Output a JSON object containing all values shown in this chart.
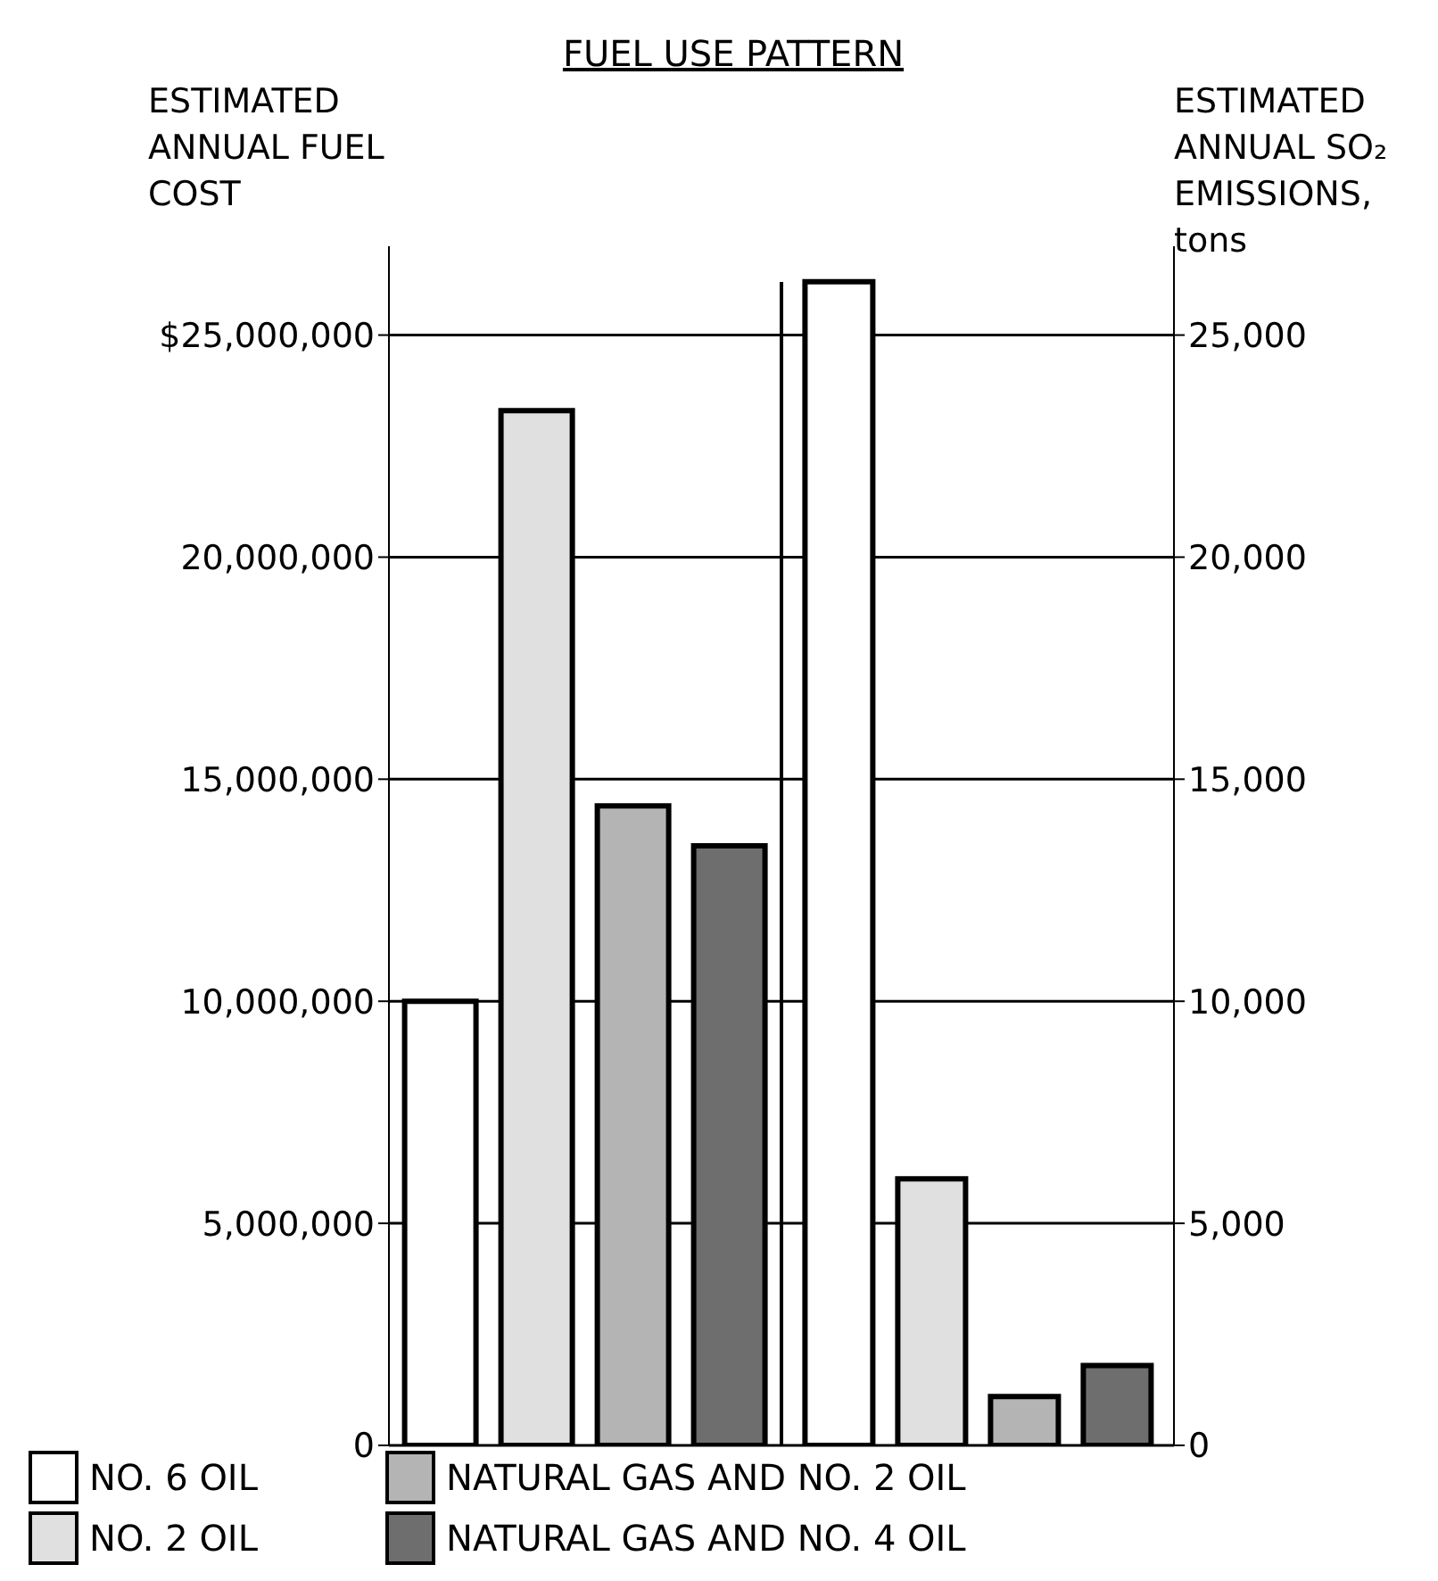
{
  "chart_data": [
    {
      "type": "bar",
      "title": "FUEL USE PATTERN",
      "ylabel": "ESTIMATED ANNUAL FUEL COST",
      "categories": [
        null
      ],
      "series": [
        {
          "name": "NO. 6 OIL",
          "color": "#ffffff",
          "values": [
            10000000
          ]
        },
        {
          "name": "NO. 2 OIL",
          "color": "#e0e0e0",
          "values": [
            23300000
          ]
        },
        {
          "name": "NATURAL GAS AND NO. 2 OIL",
          "color": "#b4b4b4",
          "values": [
            14400000
          ]
        },
        {
          "name": "NATURAL GAS AND NO. 4 OIL",
          "color": "#6e6e6e",
          "values": [
            13500000
          ]
        }
      ],
      "ylim": [
        0,
        27000000
      ],
      "yticks": [
        0,
        {
          "value": 5000000,
          "label": "5,000,000"
        },
        {
          "value": 10000000,
          "label": "10,000,000"
        },
        {
          "value": 15000000,
          "label": "15,000,000"
        },
        {
          "value": 20000000,
          "label": "20,000,000"
        },
        {
          "value": 25000000,
          "label": "$25,000,000"
        }
      ],
      "grid": "y",
      "legend": "bottom"
    },
    {
      "type": "bar",
      "ylabel": "ESTIMATED ANNUAL SO₂ EMISSIONS, tons",
      "categories": [
        null
      ],
      "series": [
        {
          "color": "#ffffff",
          "values": [
            26200
          ]
        },
        {
          "color": "#e0e0e0",
          "values": [
            6000
          ]
        },
        {
          "color": "#b4b4b4",
          "values": [
            1100
          ]
        },
        {
          "color": "#6e6e6e",
          "values": [
            1800
          ]
        }
      ],
      "ylim": [
        0,
        27000
      ],
      "yticks": [
        0,
        {
          "value": 5000,
          "label": "5,000"
        },
        {
          "value": 10000,
          "label": "10,000"
        },
        {
          "value": 15000,
          "label": "15,000"
        },
        {
          "value": 20000,
          "label": "20,000"
        },
        {
          "value": 25000,
          "label": "25,000"
        }
      ],
      "grid": "y",
      "legend": false
    }
  ]
}
